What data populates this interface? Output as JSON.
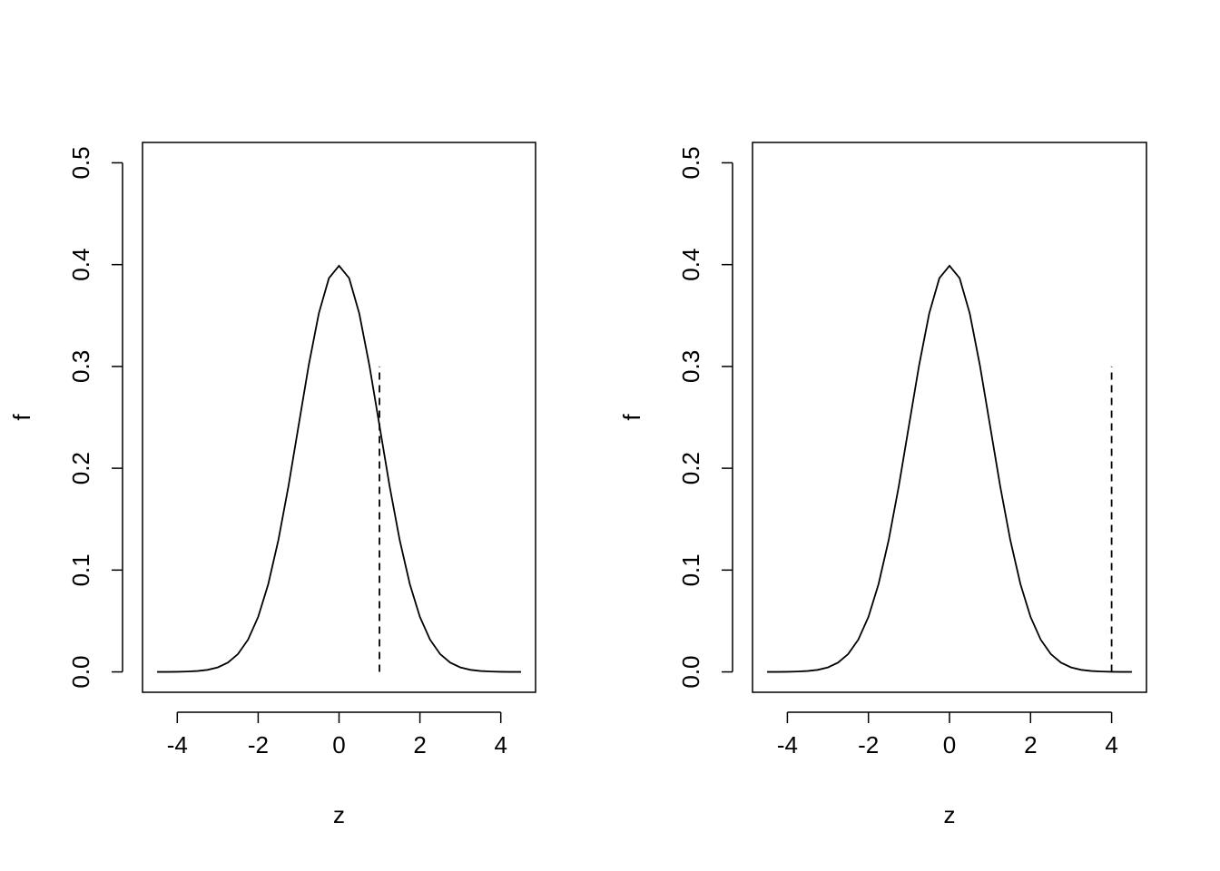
{
  "chart_data": [
    {
      "type": "line",
      "xlabel": "z",
      "ylabel": "f",
      "xlim": [
        -4.86,
        4.86
      ],
      "ylim": [
        -0.02,
        0.52
      ],
      "xticks": [
        -4,
        -2,
        0,
        2,
        4
      ],
      "yticks": [
        {
          "value": 0,
          "label": "0.0"
        },
        {
          "value": 0.1,
          "label": "0.1"
        },
        {
          "value": 0.2,
          "label": "0.2"
        },
        {
          "value": 0.3,
          "label": "0.3"
        },
        {
          "value": 0.4,
          "label": "0.4"
        },
        {
          "value": 0.5,
          "label": "0.5"
        }
      ],
      "series": [
        {
          "color": "#000000",
          "dashed": false,
          "x": [
            -4.5,
            -4.25,
            -4,
            -3.75,
            -3.5,
            -3.25,
            -3,
            -2.75,
            -2.5,
            -2.25,
            -2,
            -1.75,
            -1.5,
            -1.25,
            -1,
            -0.75,
            -0.5,
            -0.25,
            0,
            0.25,
            0.5,
            0.75,
            1,
            1.25,
            1.5,
            1.75,
            2,
            2.25,
            2.5,
            2.75,
            3,
            3.25,
            3.5,
            3.75,
            4,
            4.25,
            4.5
          ],
          "values": [
            0,
            0,
            0.0001,
            0.0004,
            0.0009,
            0.002,
            0.0044,
            0.0091,
            0.0175,
            0.0317,
            0.054,
            0.0863,
            0.1295,
            0.1826,
            0.242,
            0.3011,
            0.3521,
            0.3867,
            0.3989,
            0.3867,
            0.3521,
            0.3011,
            0.242,
            0.1826,
            0.1295,
            0.0863,
            0.054,
            0.0317,
            0.0175,
            0.0091,
            0.0044,
            0.002,
            0.0009,
            0.0004,
            0.0001,
            0,
            0
          ]
        },
        {
          "color": "#000000",
          "dashed": true,
          "x": [
            1,
            1
          ],
          "values": [
            0,
            0.3
          ]
        }
      ]
    },
    {
      "type": "line",
      "xlabel": "z",
      "ylabel": "f",
      "xlim": [
        -4.86,
        4.86
      ],
      "ylim": [
        -0.02,
        0.52
      ],
      "xticks": [
        -4,
        -2,
        0,
        2,
        4
      ],
      "yticks": [
        {
          "value": 0,
          "label": "0.0"
        },
        {
          "value": 0.1,
          "label": "0.1"
        },
        {
          "value": 0.2,
          "label": "0.2"
        },
        {
          "value": 0.3,
          "label": "0.3"
        },
        {
          "value": 0.4,
          "label": "0.4"
        },
        {
          "value": 0.5,
          "label": "0.5"
        }
      ],
      "series": [
        {
          "color": "#000000",
          "dashed": false,
          "x": [
            -4.5,
            -4.25,
            -4,
            -3.75,
            -3.5,
            -3.25,
            -3,
            -2.75,
            -2.5,
            -2.25,
            -2,
            -1.75,
            -1.5,
            -1.25,
            -1,
            -0.75,
            -0.5,
            -0.25,
            0,
            0.25,
            0.5,
            0.75,
            1,
            1.25,
            1.5,
            1.75,
            2,
            2.25,
            2.5,
            2.75,
            3,
            3.25,
            3.5,
            3.75,
            4,
            4.25,
            4.5
          ],
          "values": [
            0,
            0,
            0.0001,
            0.0004,
            0.0009,
            0.002,
            0.0044,
            0.0091,
            0.0175,
            0.0317,
            0.054,
            0.0863,
            0.1295,
            0.1826,
            0.242,
            0.3011,
            0.3521,
            0.3867,
            0.3989,
            0.3867,
            0.3521,
            0.3011,
            0.242,
            0.1826,
            0.1295,
            0.0863,
            0.054,
            0.0317,
            0.0175,
            0.0091,
            0.0044,
            0.002,
            0.0009,
            0.0004,
            0.0001,
            0,
            0
          ]
        },
        {
          "color": "#000000",
          "dashed": true,
          "x": [
            4,
            4
          ],
          "values": [
            0,
            0.3
          ]
        }
      ]
    }
  ]
}
